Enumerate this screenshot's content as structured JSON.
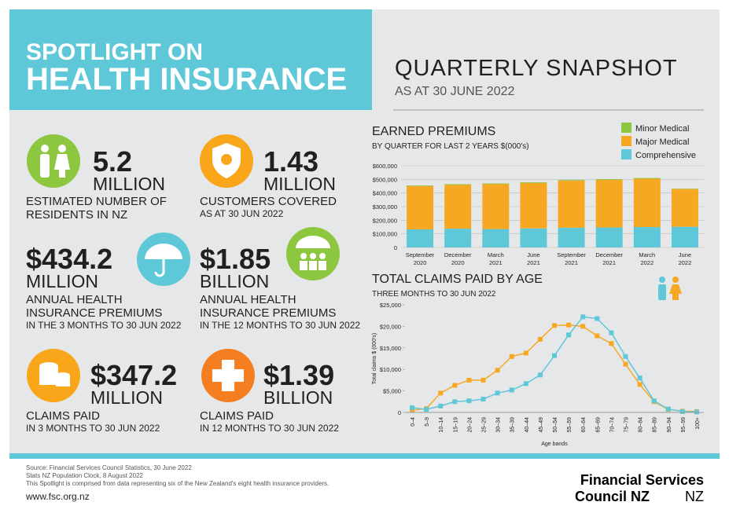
{
  "header": {
    "title_line1": "SPOTLIGHT ON",
    "title_line2": "HEALTH INSURANCE",
    "snapshot": "QUARTERLY SNAPSHOT",
    "as_at": "AS AT 30 JUNE 2022"
  },
  "stats": [
    {
      "value": "5.2",
      "unit": "MILLION",
      "label": "ESTIMATED NUMBER OF RESIDENTS IN NZ"
    },
    {
      "value": "1.43",
      "unit": "MILLION",
      "label": "CUSTOMERS COVERED",
      "note": "AS AT 30 JUN 2022"
    },
    {
      "value": "$434.2",
      "unit": "MILLION",
      "label": "ANNUAL HEALTH INSURANCE PREMIUMS",
      "note": "IN THE 3 MONTHS TO 30 JUN 2022"
    },
    {
      "value": "$1.85",
      "unit": "BILLION",
      "label": "ANNUAL HEALTH INSURANCE PREMIUMS",
      "note": "IN THE 12 MONTHS TO 30 JUN 2022"
    },
    {
      "value": "$347.2",
      "unit": "MILLION",
      "label": "CLAIMS PAID",
      "note": "IN 3 MONTHS TO 30 JUN 2022"
    },
    {
      "value": "$1.39",
      "unit": "BILLION",
      "label": "CLAIMS PAID",
      "note": "IN 12 MONTHS TO 30 JUN 2022"
    }
  ],
  "chart_data": [
    {
      "type": "stacked-bar",
      "title": "EARNED PREMIUMS",
      "subtitle": "BY QUARTER FOR LAST 2 YEARS $(000's)",
      "categories": [
        "September 2020",
        "December 2020",
        "March 2021",
        "June 2021",
        "September 2021",
        "December 2021",
        "March 2022",
        "June 2022"
      ],
      "series": [
        {
          "name": "Comprehensive",
          "color": "#5ec8d8",
          "values": [
            133000,
            138000,
            135000,
            140000,
            145000,
            147000,
            150000,
            152000
          ]
        },
        {
          "name": "Major Medical",
          "color": "#f7a823",
          "values": [
            317000,
            322000,
            330000,
            333000,
            345000,
            350000,
            355000,
            277000
          ]
        },
        {
          "name": "Minor Medical",
          "color": "#8dc63f",
          "values": [
            5000,
            5000,
            5000,
            5000,
            5000,
            5000,
            5000,
            3000
          ]
        }
      ],
      "ylim": [
        0,
        600000
      ],
      "yticks": [
        0,
        {
          "value": 100000,
          "label": "$100,000"
        },
        {
          "value": 200000,
          "label": "$200,000"
        },
        {
          "value": 300000,
          "label": "$300,000"
        },
        {
          "value": 400000,
          "label": "$400,000"
        },
        {
          "value": 500000,
          "label": "$500,000"
        },
        {
          "value": 600000,
          "label": "$600,000"
        }
      ],
      "grid": true
    },
    {
      "type": "line",
      "title": "TOTAL CLAIMS PAID BY AGE",
      "subtitle": "THREE MONTHS TO 30 JUN 2022",
      "x_label": "Age bands",
      "y_label": "Total claims $ (000's)",
      "categories": [
        "0–4",
        "5–9",
        "10–14",
        "15–19",
        "20–24",
        "25–29",
        "30–34",
        "35–39",
        "40–44",
        "45–49",
        "50–54",
        "55–59",
        "60–64",
        "65–69",
        "70–74",
        "75–79",
        "80–84",
        "85–89",
        "90–94",
        "95–99",
        "100+"
      ],
      "series": [
        {
          "color": "#f7a823",
          "values": [
            500,
            900,
            4500,
            6300,
            7500,
            7500,
            9800,
            13000,
            13800,
            17000,
            20200,
            20300,
            20000,
            17800,
            16000,
            11200,
            6500,
            2500,
            700,
            300,
            200
          ]
        },
        {
          "color": "#5ec8d8",
          "values": [
            1100,
            700,
            1500,
            2500,
            2700,
            3100,
            4500,
            5200,
            6700,
            8700,
            13200,
            18000,
            22200,
            21800,
            18500,
            13000,
            8000,
            2700,
            800,
            200,
            100
          ]
        }
      ],
      "ylim": [
        0,
        25000
      ],
      "yticks": [
        0,
        {
          "value": 5000,
          "label": "$5,000"
        },
        {
          "value": 10000,
          "label": "$10,000"
        },
        {
          "value": 15000,
          "label": "$15,000"
        },
        {
          "value": 20000,
          "label": "$20,000"
        },
        {
          "value": 25000,
          "label": "$25,000"
        }
      ],
      "grid": false
    }
  ],
  "footer": {
    "sources": [
      "Source: Financial Services Council Statistics, 30 June 2022",
      "Stats NZ Population Clock, 8 August 2022",
      "This Spotlight is comprised from data representing six of the New Zealand's eight health insurance providers."
    ],
    "url": "www.fsc.org.nz",
    "logo_line1": "Financial Services",
    "logo_line2": "Council NZ"
  }
}
